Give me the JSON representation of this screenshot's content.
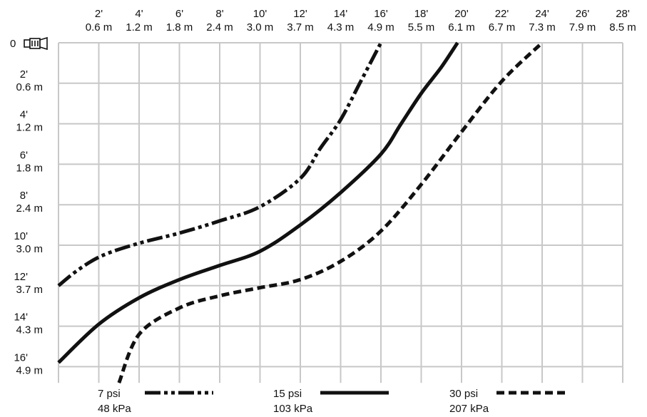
{
  "chart_data": {
    "type": "line",
    "title": "",
    "xlabel": "",
    "ylabel": "",
    "xlim": [
      0,
      28
    ],
    "ylim": [
      0,
      16.8
    ],
    "y_inverted": true,
    "grid": true,
    "legend_placement": "bottom",
    "origin_label": "0",
    "x_ticks": [
      {
        "value": 2,
        "ft": "2'",
        "m": "0.6 m"
      },
      {
        "value": 4,
        "ft": "4'",
        "m": "1.2 m"
      },
      {
        "value": 6,
        "ft": "6'",
        "m": "1.8 m"
      },
      {
        "value": 8,
        "ft": "8'",
        "m": "2.4 m"
      },
      {
        "value": 10,
        "ft": "10'",
        "m": "3.0 m"
      },
      {
        "value": 12,
        "ft": "12'",
        "m": "3.7 m"
      },
      {
        "value": 14,
        "ft": "14'",
        "m": "4.3 m"
      },
      {
        "value": 16,
        "ft": "16'",
        "m": "4.9 m"
      },
      {
        "value": 18,
        "ft": "18'",
        "m": "5.5 m"
      },
      {
        "value": 20,
        "ft": "20'",
        "m": "6.1 m"
      },
      {
        "value": 22,
        "ft": "22'",
        "m": "6.7 m"
      },
      {
        "value": 24,
        "ft": "24'",
        "m": "7.3 m"
      },
      {
        "value": 26,
        "ft": "26'",
        "m": "7.9 m"
      },
      {
        "value": 28,
        "ft": "28'",
        "m": "8.5 m"
      }
    ],
    "y_ticks": [
      {
        "value": 2,
        "ft": "2'",
        "m": "0.6 m"
      },
      {
        "value": 4,
        "ft": "4'",
        "m": "1.2 m"
      },
      {
        "value": 6,
        "ft": "6'",
        "m": "1.8 m"
      },
      {
        "value": 8,
        "ft": "8'",
        "m": "2.4 m"
      },
      {
        "value": 10,
        "ft": "10'",
        "m": "3.0 m"
      },
      {
        "value": 12,
        "ft": "12'",
        "m": "3.7 m"
      },
      {
        "value": 14,
        "ft": "14'",
        "m": "4.3 m"
      },
      {
        "value": 16,
        "ft": "16'",
        "m": "4.9 m"
      }
    ],
    "series": [
      {
        "name": "7 psi",
        "name_metric": "48 kPa",
        "dash": "dash-dot-dot",
        "x": [
          0,
          1,
          2.2,
          4,
          6,
          8,
          10,
          12,
          13,
          14,
          15,
          16
        ],
        "y": [
          12,
          11.2,
          10.5,
          9.9,
          9.4,
          8.8,
          8.1,
          6.7,
          5.2,
          3.8,
          1.9,
          0
        ]
      },
      {
        "name": "15 psi",
        "name_metric": "103 kPa",
        "dash": "solid",
        "x": [
          0,
          2,
          4,
          6,
          8,
          10,
          12,
          14,
          16,
          17,
          18,
          19,
          19.8
        ],
        "y": [
          15.8,
          13.9,
          12.6,
          11.7,
          11,
          10.3,
          9,
          7.4,
          5.5,
          4,
          2.5,
          1.2,
          0
        ]
      },
      {
        "name": "30 psi",
        "name_metric": "207 kPa",
        "dash": "dashed",
        "x": [
          3,
          4,
          6,
          8,
          10,
          12,
          14,
          16,
          18,
          20,
          22,
          24
        ],
        "y": [
          16.8,
          14.4,
          13.1,
          12.5,
          12.1,
          11.7,
          10.8,
          9.3,
          7,
          4.4,
          1.9,
          0
        ]
      }
    ]
  }
}
